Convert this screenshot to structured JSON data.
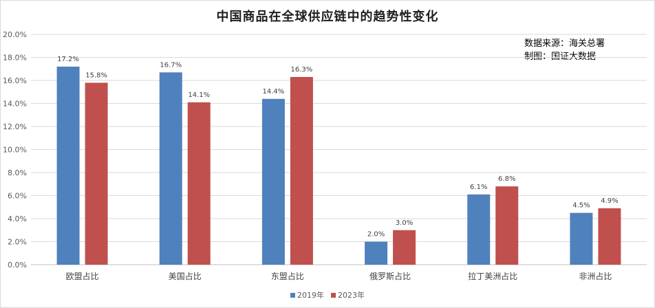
{
  "chart_data": {
    "type": "bar",
    "title": "中国商品在全球供应链中的趋势性变化",
    "source_lines": [
      "数据来源：海关总署",
      "制图：国证大数据"
    ],
    "categories": [
      "欧盟占比",
      "美国占比",
      "东盟占比",
      "俄罗斯占比",
      "拉丁美洲占比",
      "非洲占比"
    ],
    "series": [
      {
        "name": "2019年",
        "color": "#4f81bd",
        "values": [
          17.2,
          16.7,
          14.4,
          2.0,
          6.1,
          4.5
        ],
        "labels": [
          "17.2%",
          "16.7%",
          "14.4%",
          "2.0%",
          "6.1%",
          "4.5%"
        ]
      },
      {
        "name": "2023年",
        "color": "#c0504d",
        "values": [
          15.8,
          14.1,
          16.3,
          3.0,
          6.8,
          4.9
        ],
        "labels": [
          "15.8%",
          "14.1%",
          "16.3%",
          "3.0%",
          "6.8%",
          "4.9%"
        ]
      }
    ],
    "ylim": [
      0,
      20
    ],
    "yticks": [
      "0.0%",
      "2.0%",
      "4.0%",
      "6.0%",
      "8.0%",
      "10.0%",
      "12.0%",
      "14.0%",
      "16.0%",
      "18.0%",
      "20.0%"
    ],
    "grid": true,
    "legend_position": "bottom"
  }
}
